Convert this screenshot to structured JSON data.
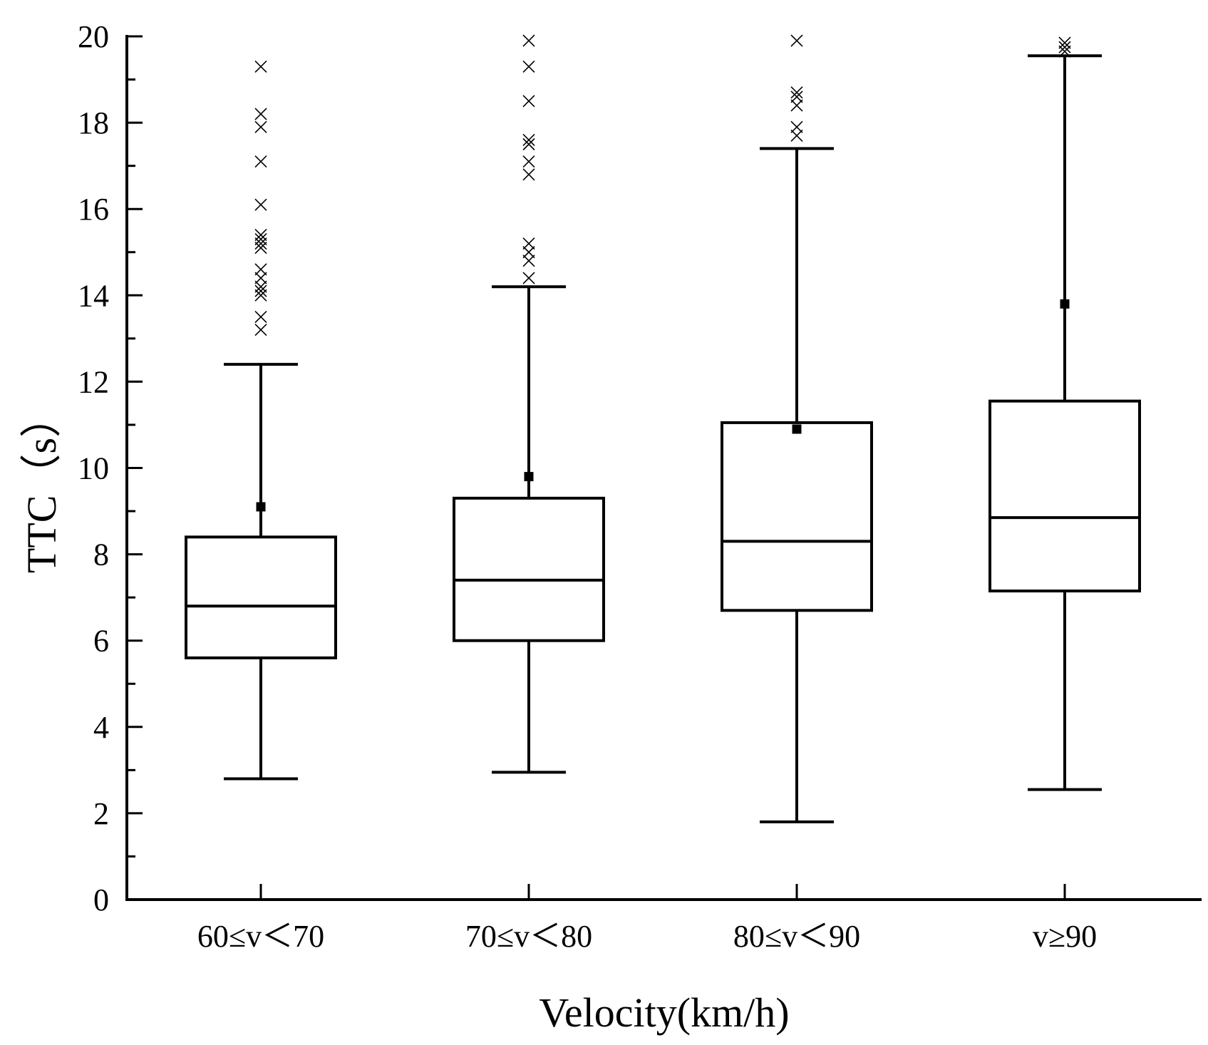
{
  "chart_data": {
    "type": "box",
    "title": "",
    "xlabel": "Velocity(km/h)",
    "ylabel": "TTC（s）",
    "ylim": [
      0,
      20
    ],
    "yticks": [
      "0",
      "2",
      "4",
      "6",
      "8",
      "10",
      "12",
      "14",
      "16",
      "18",
      "20"
    ],
    "categories": [
      "60≤v＜70",
      "70≤v＜80",
      "80≤v＜90",
      "v≥90"
    ],
    "series": [
      {
        "name": "60≤v＜70",
        "whisker_low": 2.8,
        "q1": 5.6,
        "median": 6.8,
        "q3": 8.4,
        "whisker_high": 12.4,
        "mean": 9.1,
        "outliers": [
          13.2,
          13.5,
          14.0,
          14.1,
          14.2,
          14.4,
          14.6,
          15.1,
          15.2,
          15.3,
          15.4,
          16.1,
          17.1,
          17.9,
          18.2,
          19.3
        ]
      },
      {
        "name": "70≤v＜80",
        "whisker_low": 2.95,
        "q1": 6.0,
        "median": 7.4,
        "q3": 9.3,
        "whisker_high": 14.2,
        "mean": 9.8,
        "outliers": [
          14.4,
          14.8,
          15.0,
          15.2,
          16.8,
          17.1,
          17.5,
          17.6,
          18.5,
          19.3,
          19.9
        ]
      },
      {
        "name": "80≤v＜90",
        "whisker_low": 1.8,
        "q1": 6.7,
        "median": 8.3,
        "q3": 11.05,
        "whisker_high": 17.4,
        "mean": 10.9,
        "outliers": [
          17.7,
          17.9,
          18.4,
          18.6,
          18.7,
          19.9
        ]
      },
      {
        "name": "v≥90",
        "whisker_low": 2.55,
        "q1": 7.15,
        "median": 8.85,
        "q3": 11.55,
        "whisker_high": 19.55,
        "mean": 13.8,
        "outliers": [
          19.65,
          19.75,
          19.85
        ]
      }
    ]
  }
}
